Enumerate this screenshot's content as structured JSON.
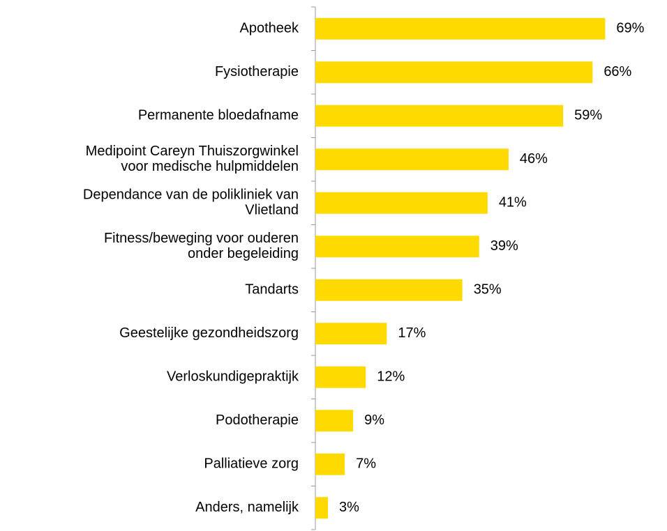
{
  "chart_data": {
    "type": "barh",
    "categories": [
      "Apotheek",
      "Fysiotherapie",
      "Permanente bloedafname",
      "Medipoint Careyn Thuiszorgwinkel\nvoor medische hulpmiddelen",
      "Dependance van de polikliniek van\nVlietland",
      "Fitness/beweging voor ouderen\nonder begeleiding",
      "Tandarts",
      "Geestelijke gezondheidszorg",
      "Verloskundigepraktijk",
      "Podotherapie",
      "Palliatieve zorg",
      "Anders, namelijk"
    ],
    "values": [
      69,
      66,
      59,
      46,
      41,
      39,
      35,
      17,
      12,
      9,
      7,
      3
    ],
    "value_labels": [
      "69%",
      "66%",
      "59%",
      "46%",
      "41%",
      "39%",
      "35%",
      "17%",
      "12%",
      "9%",
      "7%",
      "3%"
    ],
    "color": "#ffda00"
  }
}
